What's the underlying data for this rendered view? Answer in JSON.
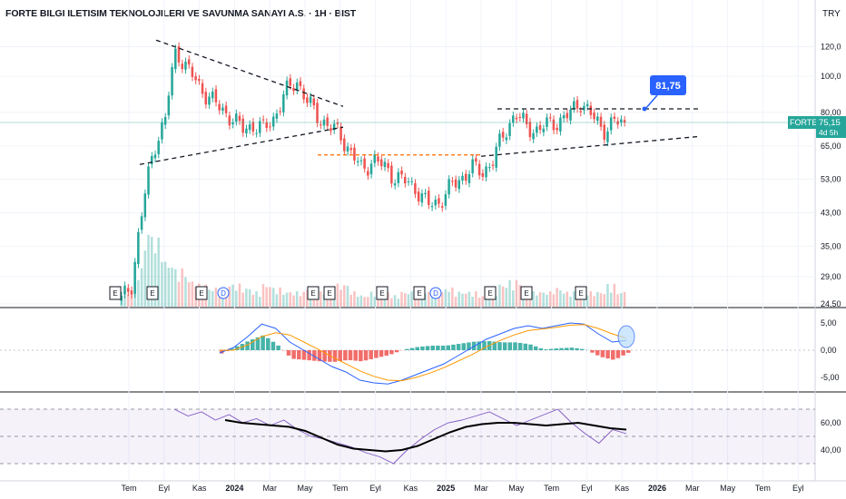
{
  "header": {
    "title": "FORTE BILGI ILETISIM TEKNOLOJILERI VE SAVUNMA SANAYI A.S. · 1H · BIST",
    "currency": "TRY"
  },
  "price_badge": {
    "symbol": "FORTE",
    "price": "75,15",
    "countdown": "4d 5h"
  },
  "annotation": {
    "target_label": "81,75"
  },
  "events": [
    "E",
    "E",
    "E",
    "D",
    "E",
    "E",
    "E",
    "E",
    "D",
    "E",
    "E",
    "E"
  ],
  "colors": {
    "up": "#26a69a",
    "down": "#ef5350",
    "macd_line": "#2962ff",
    "signal_line": "#ff9800",
    "rsi_line": "#7e57c2",
    "rsi_ma": "#000000",
    "badge": "#26a69a",
    "callout": "#2962ff",
    "support_line": "#ff6d00"
  },
  "chart_data": [
    {
      "type": "candlestick",
      "name": "price",
      "x_axis_labels": [
        "Tem",
        "Eyl",
        "Kas",
        "2024",
        "Mar",
        "May",
        "Tem",
        "Eyl",
        "Kas",
        "2025",
        "Mar",
        "May",
        "Tem",
        "Eyl",
        "Kas",
        "2026",
        "Mar",
        "May",
        "Tem",
        "Eyl"
      ],
      "y_ticks": [
        "120,0",
        "100,0",
        "80,00",
        "65,00",
        "53,00",
        "43,00",
        "35,00",
        "29,00",
        "24,50"
      ],
      "scale": "log",
      "ylim": [
        24.5,
        120
      ],
      "last_price": 75.15,
      "close_path": [
        [
          0,
          25
        ],
        [
          1,
          28
        ],
        [
          2,
          45
        ],
        [
          3,
          65
        ],
        [
          4,
          76
        ],
        [
          5,
          118
        ],
        [
          6,
          105
        ],
        [
          7,
          95
        ],
        [
          8,
          88
        ],
        [
          9,
          82
        ],
        [
          10,
          78
        ],
        [
          11,
          72
        ],
        [
          12,
          74
        ],
        [
          13,
          72
        ],
        [
          14,
          78
        ],
        [
          15,
          90
        ],
        [
          16,
          98
        ],
        [
          17,
          85
        ],
        [
          18,
          78
        ],
        [
          19,
          73
        ],
        [
          20,
          70
        ],
        [
          21,
          62
        ],
        [
          22,
          56
        ],
        [
          23,
          60
        ],
        [
          24,
          57
        ],
        [
          25,
          54
        ],
        [
          26,
          52
        ],
        [
          27,
          50
        ],
        [
          28,
          45
        ],
        [
          29,
          46
        ],
        [
          30,
          50
        ],
        [
          31,
          53
        ],
        [
          32,
          57
        ],
        [
          33,
          55
        ],
        [
          34,
          60
        ],
        [
          35,
          70
        ],
        [
          36,
          80
        ],
        [
          37,
          73
        ],
        [
          38,
          72
        ],
        [
          39,
          74
        ],
        [
          40,
          76
        ],
        [
          41,
          79
        ],
        [
          42,
          86
        ],
        [
          43,
          78
        ],
        [
          44,
          72
        ],
        [
          45,
          75
        ],
        [
          46,
          75.15
        ]
      ],
      "volume_relative": [
        0.2,
        0.5,
        1.0,
        0.9,
        0.6,
        0.5,
        0.35,
        0.3,
        0.25,
        0.2,
        0.3,
        0.25,
        0.2,
        0.3,
        0.25,
        0.2,
        0.2,
        0.25,
        0.2,
        0.25,
        0.3,
        0.2,
        0.15,
        0.2,
        0.2,
        0.15,
        0.2,
        0.25,
        0.2,
        0.2,
        0.25,
        0.2,
        0.2,
        0.15,
        0.2,
        0.3,
        0.35,
        0.25,
        0.2,
        0.2,
        0.25,
        0.2,
        0.25,
        0.2,
        0.2,
        0.3,
        0.2
      ]
    },
    {
      "type": "line",
      "name": "MACD",
      "y_ticks": [
        "5,00",
        "0,00",
        "-5,00"
      ],
      "ylim": [
        -7,
        7
      ],
      "macd": [
        -0.5,
        0.5,
        2.5,
        4.8,
        4.0,
        1.5,
        0.0,
        -1.5,
        -3.0,
        -4.0,
        -5.5,
        -6.0,
        -6.2,
        -5.5,
        -4.5,
        -3.5,
        -2.5,
        -1.0,
        0.5,
        2.0,
        3.0,
        4.0,
        4.5,
        4.0,
        4.5,
        5.0,
        4.8,
        3.0,
        1.5,
        1.8
      ],
      "signal": [
        0.0,
        0.0,
        1.0,
        2.5,
        3.2,
        2.8,
        1.5,
        0.2,
        -1.2,
        -2.5,
        -3.8,
        -4.8,
        -5.5,
        -5.6,
        -5.0,
        -4.2,
        -3.2,
        -2.0,
        -0.8,
        0.6,
        1.8,
        2.8,
        3.6,
        3.9,
        4.2,
        4.6,
        4.7,
        4.0,
        3.0,
        2.2
      ]
    },
    {
      "type": "line",
      "name": "RSI",
      "y_ticks": [
        "60,00",
        "40,00"
      ],
      "ylim": [
        20,
        80
      ],
      "rsi": [
        70,
        65,
        68,
        62,
        66,
        60,
        63,
        58,
        62,
        55,
        50,
        48,
        45,
        42,
        38,
        35,
        30,
        40,
        48,
        55,
        60,
        62,
        65,
        68,
        63,
        58,
        62,
        66,
        70,
        60,
        52,
        45,
        55,
        52
      ],
      "rsi_ma": [
        62,
        60,
        59,
        58,
        57,
        54,
        49,
        44,
        41,
        40,
        39,
        40,
        43,
        48,
        53,
        57,
        59,
        60,
        60,
        59,
        58,
        59,
        60,
        58,
        56,
        55
      ]
    }
  ]
}
